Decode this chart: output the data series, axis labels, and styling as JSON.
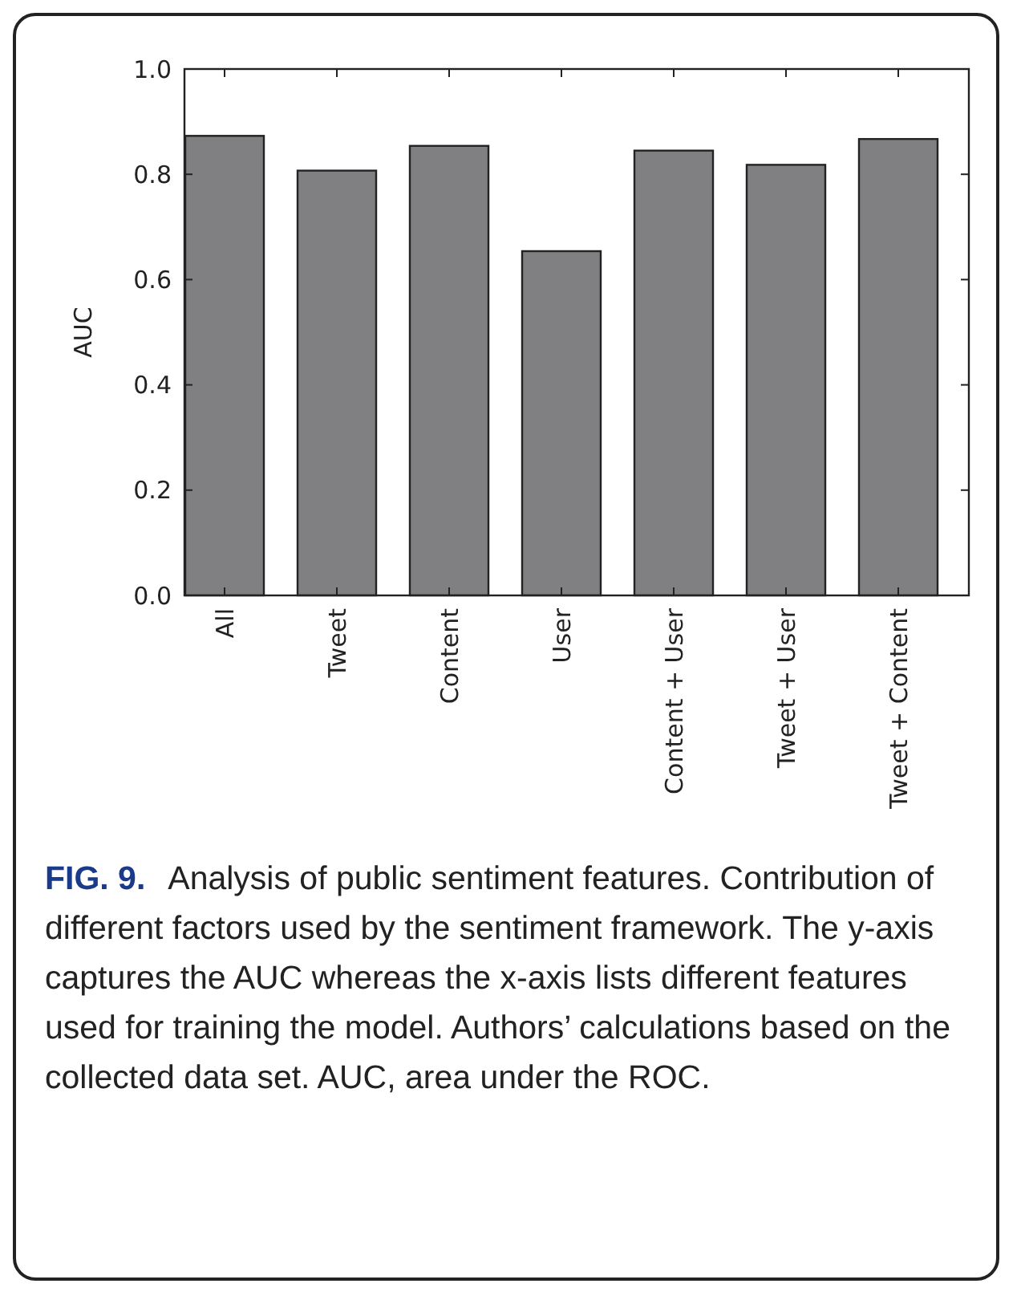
{
  "chart_data": {
    "type": "bar",
    "categories": [
      "All",
      "Tweet",
      "Content",
      "User",
      "Content + User",
      "Tweet + User",
      "Tweet + Content"
    ],
    "values": [
      0.873,
      0.807,
      0.854,
      0.654,
      0.845,
      0.818,
      0.867
    ],
    "color": "#808083",
    "ylabel": "AUC",
    "ylim": [
      0,
      1
    ],
    "yticks": [
      {
        "value": 0,
        "label": "0.0"
      },
      {
        "value": 0.2,
        "label": "0.2"
      },
      {
        "value": 0.4,
        "label": "0.4"
      },
      {
        "value": 0.6,
        "label": "0.6"
      },
      {
        "value": 0.8,
        "label": "0.8"
      },
      {
        "value": 1,
        "label": "1.0"
      }
    ],
    "grid": false,
    "annotations": [
      "FIG. 9.",
      "Analysis of public sentiment features. Contribution of different factors used by the sentiment framework. The y-axis captures the AUC whereas the x-axis lists different features used for training the model. Authors’ calculations based on the collected data set. AUC, area under the ROC."
    ]
  }
}
